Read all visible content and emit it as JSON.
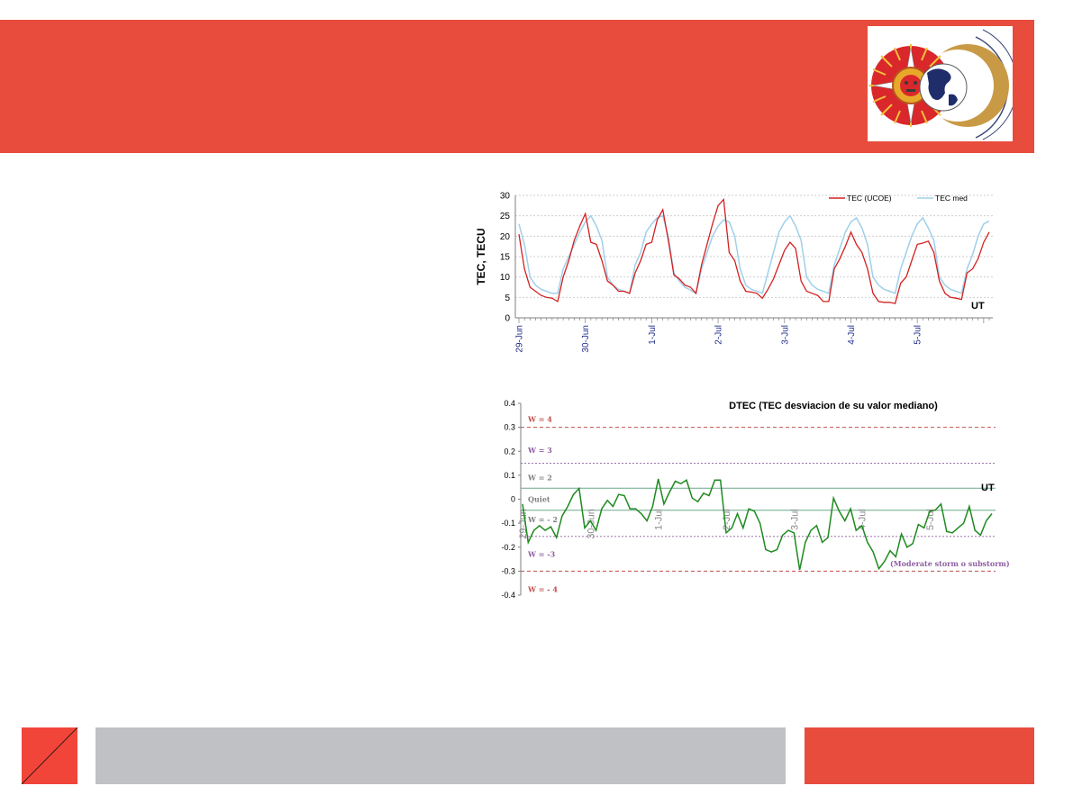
{
  "colors": {
    "header": "#e84c3d",
    "footer_left": "#f2453a",
    "footer_mid": "#bfc1c4",
    "footer_right": "#e84c3d",
    "tec_series": "#d42020",
    "tec_med_series": "#9fd0ea",
    "dtec_series": "#1e8a1e"
  },
  "logo": {
    "icon": "sun-earth-moon-logo"
  },
  "chart_data": [
    {
      "type": "line",
      "ylabel": "TEC, TECU",
      "xlabel": "UT",
      "ylim": [
        0,
        30
      ],
      "yticks": [
        0,
        5,
        10,
        15,
        20,
        25,
        30
      ],
      "grid": true,
      "legend": "top-right",
      "date_labels": [
        "29-Jun",
        "30-Jun",
        "1-Jul",
        "2-Jul",
        "3-Jul",
        "4-Jul",
        "5-Jul"
      ],
      "series": [
        {
          "name": "TEC (UCOE)",
          "values": [
            20.5,
            12,
            7.5,
            6.5,
            5.5,
            5,
            4.8,
            4,
            10,
            14,
            19,
            22.5,
            25.5,
            18.5,
            18,
            14,
            9,
            8,
            6.5,
            6.5,
            6,
            11,
            14,
            18,
            18.5,
            24,
            26.5,
            19,
            10.5,
            9.5,
            8,
            7.5,
            6,
            13,
            18,
            23,
            27.5,
            29,
            16,
            14,
            9,
            6.5,
            6.3,
            6,
            4.8,
            7,
            9.5,
            13,
            16.5,
            18.5,
            17,
            9,
            6.5,
            6,
            5.5,
            4,
            4,
            12,
            14.5,
            17.5,
            21,
            18,
            16,
            12,
            6,
            4,
            3.8,
            3.8,
            3.5,
            8.5,
            10,
            14,
            18,
            18.3,
            18.8,
            16,
            9,
            6,
            5,
            4.8,
            4.5,
            11,
            12,
            14.5,
            18.5,
            21
          ]
        },
        {
          "name": "TEC med",
          "values": [
            23,
            18,
            10,
            8,
            7,
            6.5,
            6,
            6,
            12,
            15,
            18,
            21,
            23.5,
            25,
            22.5,
            19,
            10,
            8,
            7,
            6.5,
            6,
            13,
            16,
            21,
            23,
            24.5,
            25,
            20,
            11,
            9,
            7.5,
            6.8,
            6,
            12,
            16,
            20,
            22.5,
            24,
            23.5,
            20,
            12,
            8,
            7,
            6.5,
            6,
            11,
            16,
            21,
            23.5,
            25,
            22.5,
            19,
            10,
            8,
            7,
            6.5,
            6,
            13,
            17,
            21,
            23.5,
            24.5,
            22,
            18,
            10,
            8,
            7,
            6.5,
            6,
            12,
            16,
            20,
            23,
            24.5,
            22,
            19,
            10,
            8,
            7,
            6.5,
            6,
            12,
            15.5,
            20,
            23,
            23.7
          ]
        }
      ]
    },
    {
      "type": "line",
      "title": "DTEC (TEC desviacion de su valor mediano)",
      "xlabel": "UT",
      "ylim": [
        -0.4,
        0.4
      ],
      "yticks": [
        "-0.4",
        "-0.3",
        "-0.2",
        "-0.1",
        "0",
        "0.1",
        "0.2",
        "0.3",
        "0.4"
      ],
      "date_labels": [
        "29-Jun",
        "30-Jun",
        "1-Jul",
        "2-Jul",
        "3-Jul",
        "4-Jul",
        "5-Jul"
      ],
      "levels": [
        {
          "label": "W = 4",
          "value": 0.3,
          "text_at": 0.335,
          "color": "#c0504d",
          "dash": "4,3"
        },
        {
          "label": "W = 3",
          "value": 0.15,
          "text_at": 0.205,
          "color": "#8e5ea2",
          "dash": "2,2"
        },
        {
          "label": "W = 2",
          "value": 0.046,
          "text_at": 0.09,
          "color": "#7f7f7f",
          "dash": ""
        },
        {
          "label": "Quiet",
          "value": null,
          "text_at": 0.0,
          "color": "#7f7f7f",
          "dash": ""
        },
        {
          "label": "W = - 2",
          "value": -0.046,
          "text_at": -0.085,
          "color": "#7f7f7f",
          "dash": ""
        },
        {
          "label": "W = -3",
          "value": -0.155,
          "text_at": -0.23,
          "color": "#8e5ea2",
          "dash": "2,2"
        },
        {
          "label": "W = - 4",
          "value": -0.3,
          "text_at": -0.375,
          "color": "#c0504d",
          "dash": "4,3"
        }
      ],
      "annotation": "(Moderate storm o substorm)",
      "series": [
        {
          "name": "DTEC",
          "values": [
            -0.02,
            -0.18,
            -0.13,
            -0.11,
            -0.13,
            -0.115,
            -0.16,
            -0.07,
            -0.03,
            0.02,
            0.045,
            -0.12,
            -0.09,
            -0.13,
            -0.04,
            -0.005,
            -0.03,
            0.02,
            0.015,
            -0.04,
            -0.04,
            -0.06,
            -0.09,
            -0.03,
            0.085,
            -0.02,
            0.03,
            0.075,
            0.065,
            0.08,
            0.005,
            -0.01,
            0.025,
            0.015,
            0.08,
            0.08,
            -0.14,
            -0.12,
            -0.06,
            -0.12,
            -0.04,
            -0.05,
            -0.1,
            -0.21,
            -0.22,
            -0.21,
            -0.15,
            -0.13,
            -0.14,
            -0.295,
            -0.18,
            -0.13,
            -0.11,
            -0.18,
            -0.16,
            0.005,
            -0.05,
            -0.09,
            -0.04,
            -0.13,
            -0.11,
            -0.18,
            -0.22,
            -0.29,
            -0.26,
            -0.215,
            -0.24,
            -0.145,
            -0.2,
            -0.185,
            -0.105,
            -0.12,
            -0.05,
            -0.045,
            -0.02,
            -0.135,
            -0.14,
            -0.12,
            -0.1,
            -0.03,
            -0.13,
            -0.15,
            -0.09,
            -0.06
          ]
        }
      ]
    }
  ]
}
